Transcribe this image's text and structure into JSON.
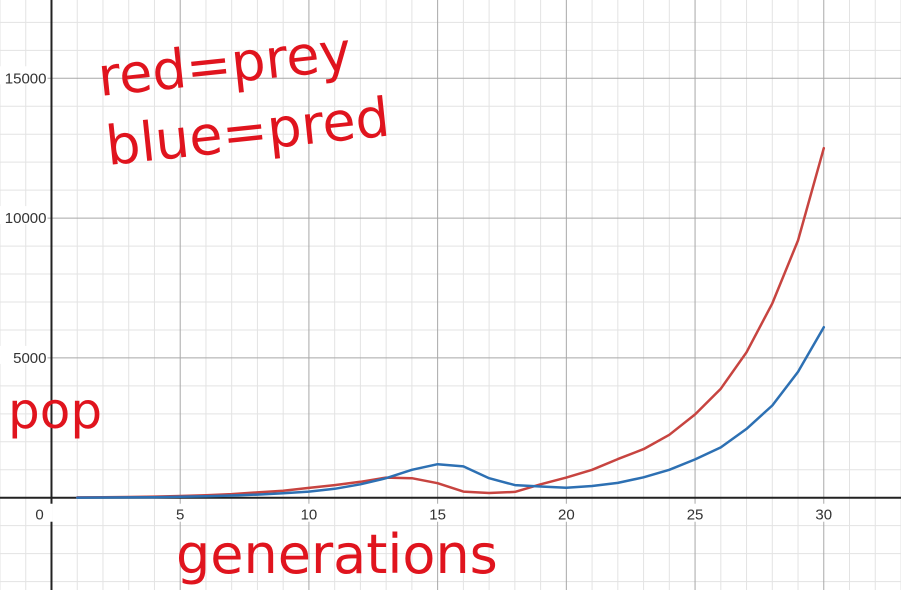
{
  "chart_data": {
    "type": "line",
    "title": "",
    "xlabel": "generations",
    "ylabel": "pop",
    "xlim": [
      -2,
      33
    ],
    "ylim": [
      -3300,
      17800
    ],
    "grid": true,
    "x_ticks": [
      {
        "value": 0,
        "label": "0"
      },
      {
        "value": 5,
        "label": "5"
      },
      {
        "value": 10,
        "label": "10"
      },
      {
        "value": 15,
        "label": "15"
      },
      {
        "value": 20,
        "label": "20"
      },
      {
        "value": 25,
        "label": "25"
      },
      {
        "value": 30,
        "label": "30"
      }
    ],
    "y_ticks": [
      {
        "value": 5000,
        "label": "5000"
      },
      {
        "value": 10000,
        "label": "10000"
      },
      {
        "value": 15000,
        "label": "15000"
      }
    ],
    "annotations": [
      {
        "text": "red=prey"
      },
      {
        "text": "blue=pred"
      }
    ],
    "x": [
      1,
      2,
      3,
      4,
      5,
      6,
      7,
      8,
      9,
      10,
      11,
      12,
      13,
      14,
      15,
      16,
      17,
      18,
      19,
      20,
      21,
      22,
      23,
      24,
      25,
      26,
      27,
      28,
      29,
      30
    ],
    "series": [
      {
        "name": "prey",
        "color": "#c74440",
        "values": [
          10,
          15,
          25,
          40,
          60,
          90,
          130,
          190,
          250,
          350,
          450,
          570,
          720,
          700,
          520,
          220,
          170,
          210,
          480,
          720,
          1000,
          1380,
          1740,
          2250,
          2980,
          3900,
          5200,
          6950,
          9200,
          12500
        ]
      },
      {
        "name": "pred",
        "color": "#2d70b3",
        "values": [
          5,
          8,
          12,
          20,
          35,
          55,
          80,
          110,
          160,
          220,
          320,
          480,
          700,
          1000,
          1200,
          1120,
          700,
          450,
          400,
          360,
          420,
          530,
          730,
          1000,
          1370,
          1800,
          2460,
          3300,
          4500,
          6100
        ]
      }
    ]
  }
}
